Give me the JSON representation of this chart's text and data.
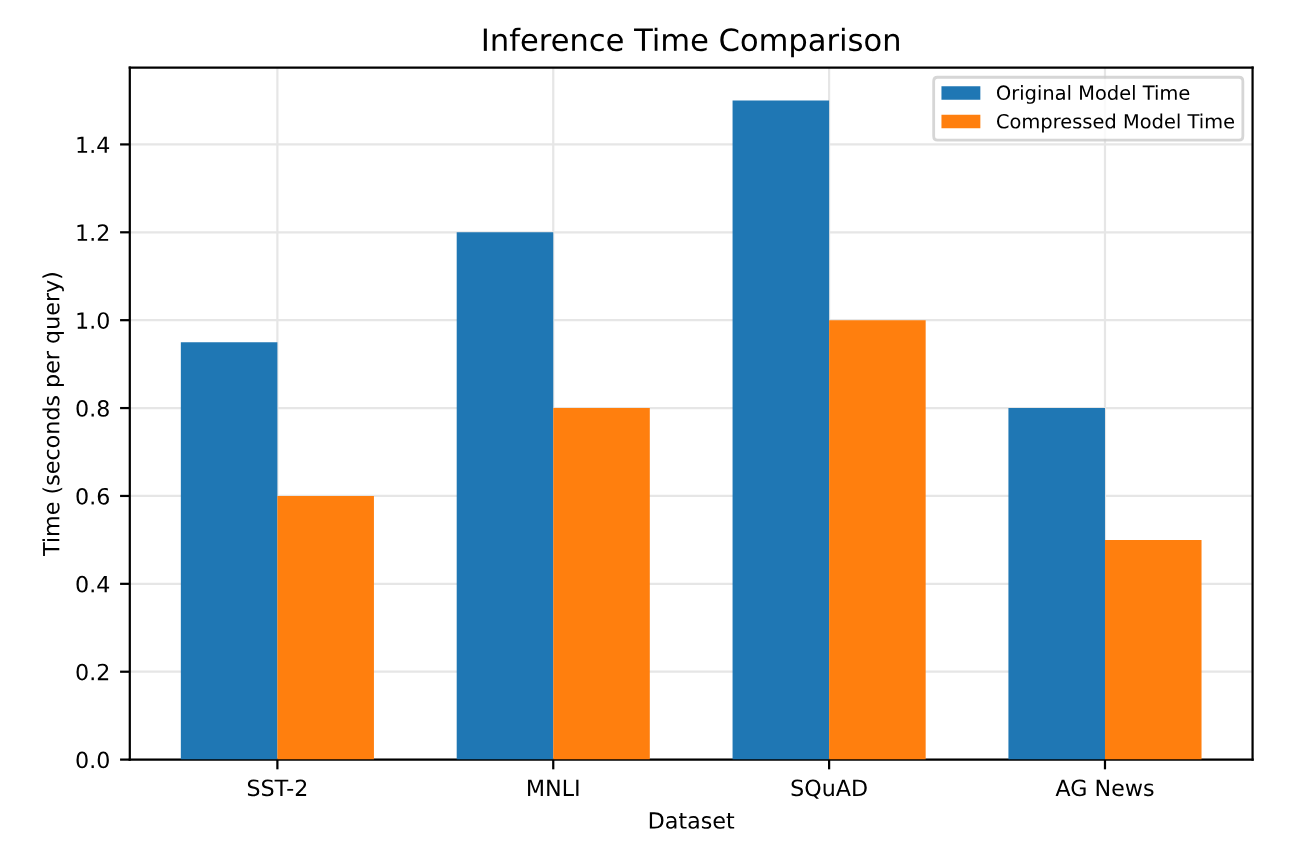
{
  "chart_data": {
    "type": "bar",
    "title": "Inference Time Comparison",
    "xlabel": "Dataset",
    "ylabel": "Time (seconds per query)",
    "categories": [
      "SST-2",
      "MNLI",
      "SQuAD",
      "AG News"
    ],
    "series": [
      {
        "name": "Original Model Time",
        "color": "#1f77b4",
        "values": [
          0.95,
          1.2,
          1.5,
          0.8
        ]
      },
      {
        "name": "Compressed Model Time",
        "color": "#ff7f0e",
        "values": [
          0.6,
          0.8,
          1.0,
          0.5
        ]
      }
    ],
    "ylim": [
      0,
      1.575
    ],
    "yticks": [
      {
        "value": 0,
        "label": "0.0"
      },
      {
        "value": 0.2,
        "label": "0.2"
      },
      {
        "value": 0.4,
        "label": "0.4"
      },
      {
        "value": 0.6,
        "label": "0.6"
      },
      {
        "value": 0.8,
        "label": "0.8"
      },
      {
        "value": 1.0,
        "label": "1.0"
      },
      {
        "value": 1.2,
        "label": "1.2"
      },
      {
        "value": 1.4,
        "label": "1.4"
      }
    ],
    "grid": true,
    "legend": "top right"
  }
}
